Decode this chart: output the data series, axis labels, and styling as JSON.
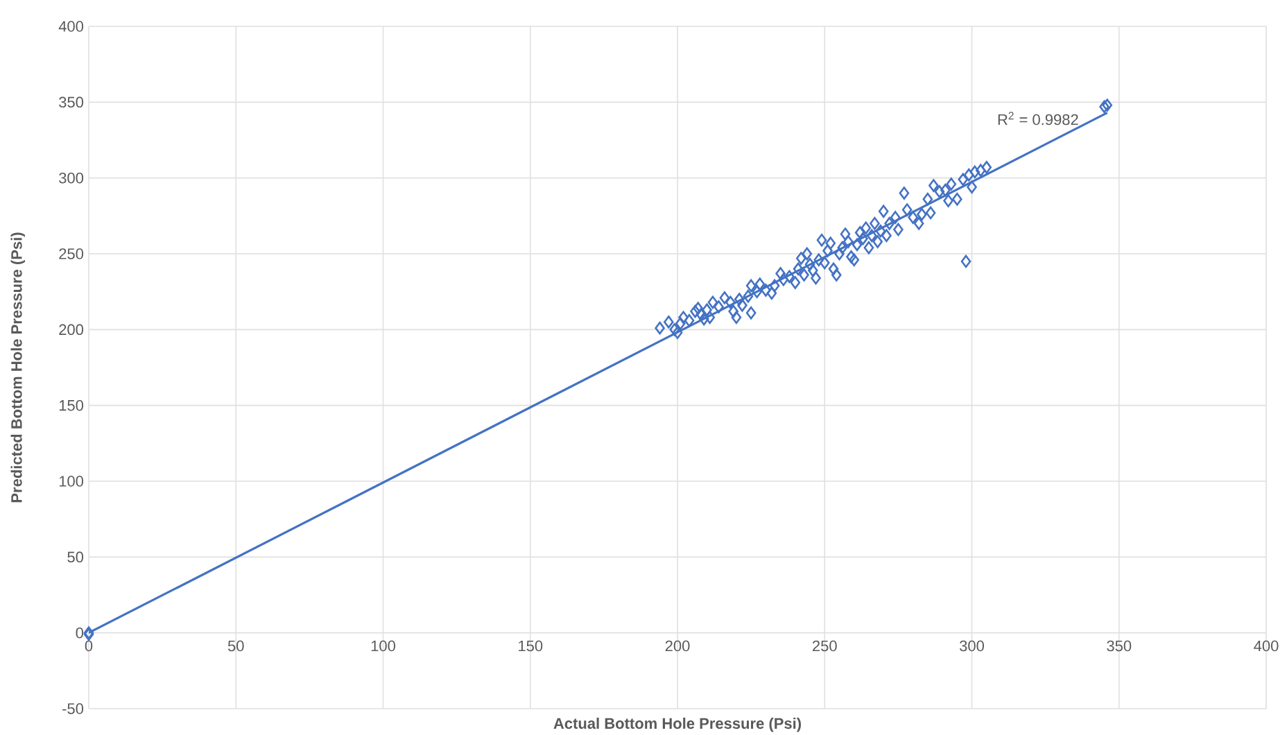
{
  "chart_data": {
    "type": "scatter",
    "xlabel": "Actual Bottom Hole Pressure (Psi)",
    "ylabel": "Predicted Bottom Hole Pressure (Psi)",
    "annotations": [
      "R$^{2}$ = 0.9982"
    ],
    "xlim": [
      0,
      400
    ],
    "ylim": [
      -50,
      400
    ],
    "xticks": [
      0,
      50,
      100,
      150,
      200,
      250,
      300,
      350,
      400
    ],
    "yticks": [
      -50,
      0,
      50,
      100,
      150,
      200,
      250,
      300,
      350,
      400
    ],
    "grid": true,
    "marker": "diamond",
    "series": [
      {
        "color": "#4472c4",
        "x": [
          0,
          0,
          194,
          197,
          199,
          200,
          201,
          202,
          204,
          206,
          207,
          208,
          209,
          210,
          211,
          212,
          214,
          216,
          218,
          219,
          220,
          221,
          222,
          224,
          225,
          225,
          227,
          228,
          230,
          232,
          233,
          235,
          236,
          238,
          240,
          241,
          242,
          243,
          244,
          245,
          246,
          247,
          248,
          249,
          250,
          251,
          252,
          253,
          254,
          255,
          256,
          257,
          258,
          259,
          260,
          261,
          262,
          263,
          264,
          265,
          266,
          267,
          268,
          269,
          270,
          271,
          272,
          274,
          275,
          277,
          278,
          280,
          282,
          283,
          285,
          286,
          287,
          289,
          291,
          292,
          293,
          295,
          297,
          298,
          299,
          300,
          301,
          303,
          305,
          345,
          346
        ],
        "values": [
          0,
          -1,
          201,
          205,
          200,
          198,
          204,
          208,
          206,
          212,
          214,
          210,
          207,
          213,
          208,
          218,
          215,
          221,
          218,
          212,
          208,
          220,
          216,
          222,
          211,
          229,
          225,
          230,
          226,
          224,
          229,
          237,
          233,
          235,
          231,
          240,
          247,
          236,
          250,
          243,
          239,
          234,
          246,
          259,
          244,
          252,
          257,
          240,
          236,
          250,
          254,
          263,
          258,
          248,
          246,
          256,
          264,
          260,
          267,
          254,
          262,
          270,
          258,
          265,
          278,
          262,
          270,
          274,
          266,
          290,
          279,
          274,
          270,
          276,
          286,
          277,
          295,
          291,
          292,
          285,
          296,
          286,
          299,
          245,
          302,
          294,
          304,
          305,
          307,
          347,
          348
        ]
      },
      {
        "type": "line",
        "color": "#4472c4",
        "marker": "none",
        "x": [
          0,
          346
        ],
        "values": [
          0,
          343
        ]
      }
    ]
  }
}
